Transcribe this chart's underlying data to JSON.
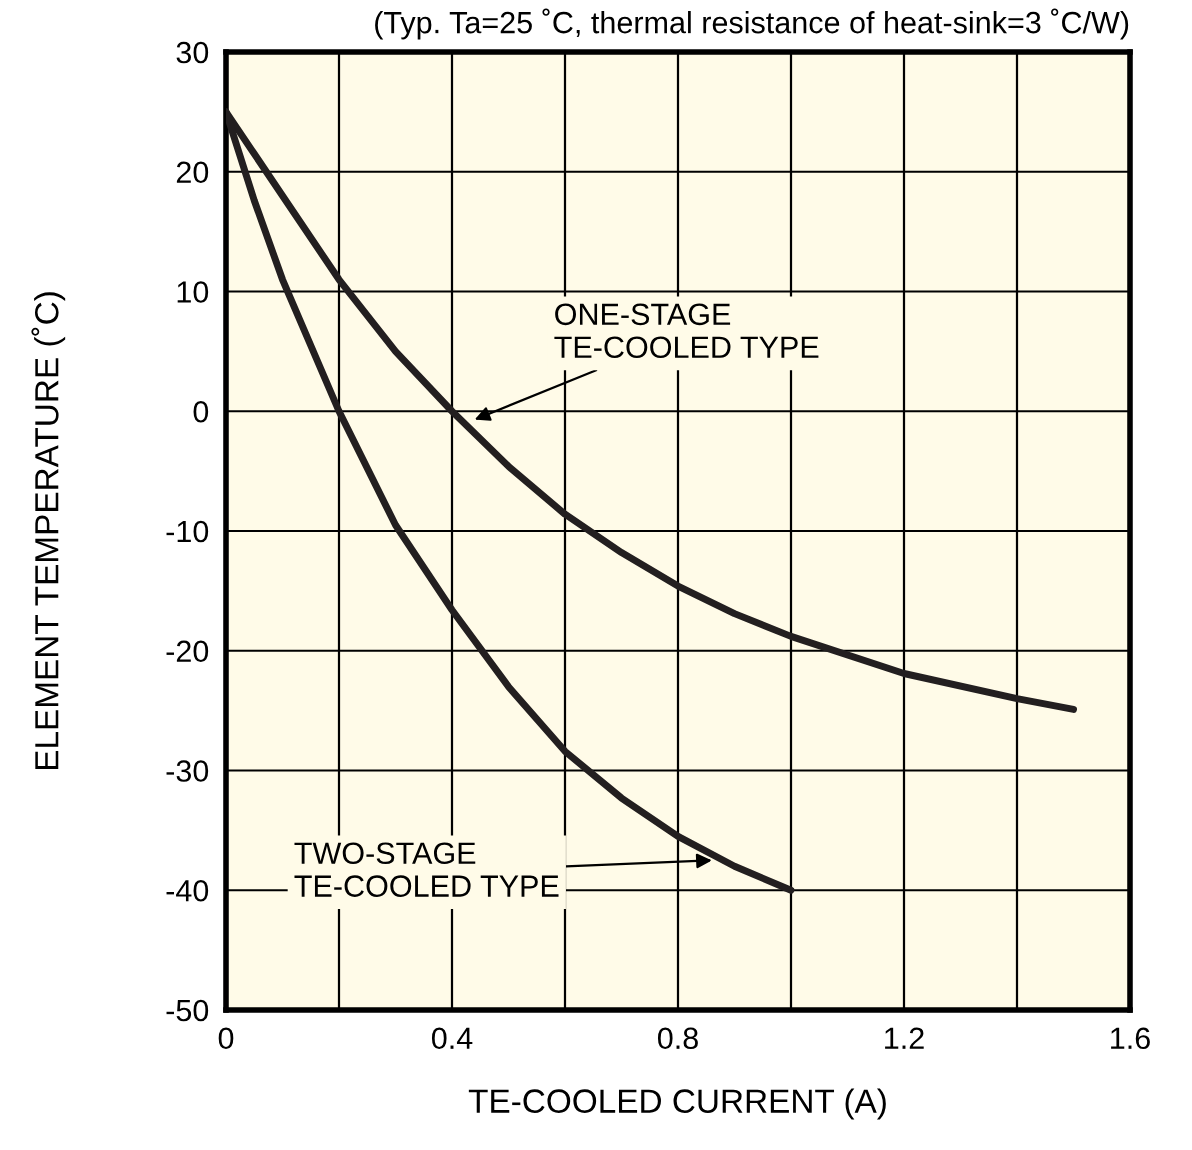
{
  "chart_data": {
    "type": "line",
    "title": "(Typ. Ta=25 ˚C, thermal resistance of heat-sink=3 ˚C/W)",
    "xlabel": "TE-COOLED CURRENT (A)",
    "ylabel": "ELEMENT TEMPERATURE (˚C)",
    "series": [
      {
        "color": "#231f20",
        "x": [
          0,
          0.05,
          0.1,
          0.2,
          0.3,
          0.4,
          0.5,
          0.6,
          0.7,
          0.8,
          0.9,
          1.0,
          1.2,
          1.4,
          1.5
        ],
        "values": [
          25,
          21.5,
          18,
          11,
          5,
          0,
          -4.6,
          -8.6,
          -11.8,
          -14.6,
          -16.9,
          -18.8,
          -21.9,
          -24,
          -24.9
        ]
      },
      {
        "color": "#231f20",
        "x": [
          0,
          0.05,
          0.1,
          0.2,
          0.3,
          0.4,
          0.5,
          0.6,
          0.7,
          0.8,
          0.9,
          1.0
        ],
        "values": [
          25,
          17.6,
          11,
          0,
          -9.5,
          -16.6,
          -23,
          -28.4,
          -32.3,
          -35.5,
          -38,
          -40
        ]
      }
    ],
    "annotations": [
      {
        "text": "ONE-STAGE\nTE-COOLED TYPE",
        "x": 0.44,
        "y": -0.7
      },
      {
        "text": "TWO-STAGE\nTE-COOLED TYPE",
        "x": 0.86,
        "y": -37.5
      }
    ],
    "xlim": [
      0,
      1.6
    ],
    "ylim": [
      -50,
      30
    ],
    "xticks": [
      0,
      0.4,
      0.8,
      1.2,
      1.6
    ],
    "yticks": [
      30,
      20,
      10,
      0,
      -10,
      -20,
      -30,
      -40,
      -50
    ],
    "grid": true,
    "line_style": "solid",
    "marker": "none"
  }
}
